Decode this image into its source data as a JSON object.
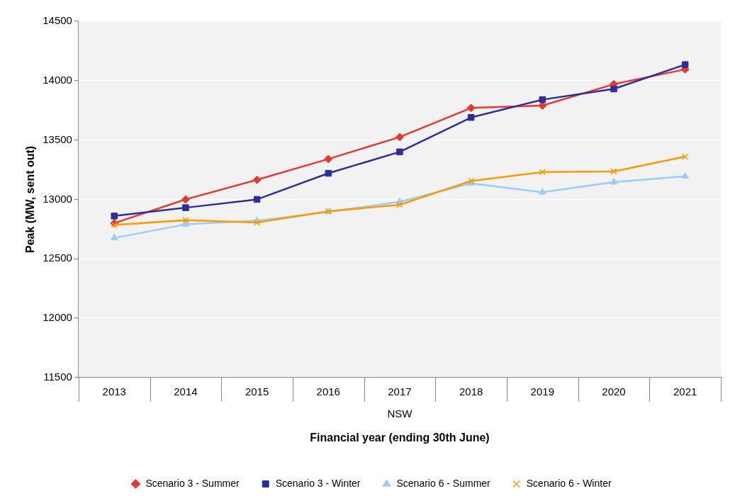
{
  "chart_data": {
    "type": "line",
    "xlabel": "Financial year (ending 30th June)",
    "ylabel": "Peak (MW, sent out)",
    "categories": [
      "2013",
      "2014",
      "2015",
      "2016",
      "2017",
      "2018",
      "2019",
      "2020",
      "2021"
    ],
    "series": [
      {
        "name": "Scenario 3 - Summer",
        "color": "#e8392f",
        "marker": "diamond",
        "values": [
          12800,
          13000,
          13165,
          13340,
          13525,
          13770,
          13790,
          13970,
          14095
        ]
      },
      {
        "name": "Scenario 3 - Winter",
        "color": "#2e2e9a",
        "marker": "square",
        "values": [
          12860,
          12930,
          13000,
          13220,
          13400,
          13690,
          13840,
          13930,
          14135
        ]
      },
      {
        "name": "Scenario 6 - Summer",
        "color": "#99ccff",
        "marker": "triangle",
        "values": [
          12675,
          12790,
          12820,
          12895,
          12980,
          13135,
          13060,
          13145,
          13195
        ]
      },
      {
        "name": "Scenario 6 - Winter",
        "color": "#ff9900",
        "marker": "cross",
        "values": [
          12785,
          12825,
          12805,
          12900,
          12955,
          13155,
          13230,
          13235,
          13360
        ]
      }
    ],
    "annotations": [
      "NSW"
    ],
    "ylim": [
      11500,
      14500
    ],
    "yticks": [
      11500,
      12000,
      12500,
      13000,
      13500,
      14000,
      14500
    ],
    "grid": "y",
    "legend": "bottom",
    "line_style": "solid"
  }
}
